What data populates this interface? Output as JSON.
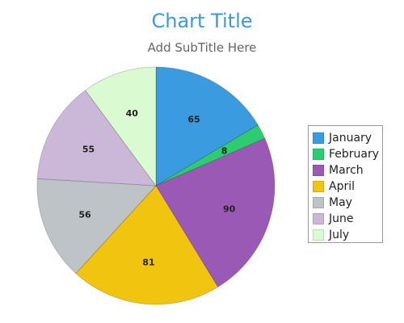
{
  "chart_data": {
    "type": "pie",
    "title": "Chart Title",
    "subtitle": "Add SubTitle Here",
    "categories": [
      "January",
      "February",
      "March",
      "April",
      "May",
      "June",
      "July"
    ],
    "values": [
      65,
      8,
      90,
      81,
      56,
      55,
      40
    ],
    "colors": [
      "#3b9be0",
      "#2ecc71",
      "#9b59b6",
      "#f1c40f",
      "#bdc3c7",
      "#cbb8d9",
      "#dafad2"
    ],
    "legend_position": "right",
    "start_angle": "12 o'clock",
    "direction": "clockwise"
  }
}
